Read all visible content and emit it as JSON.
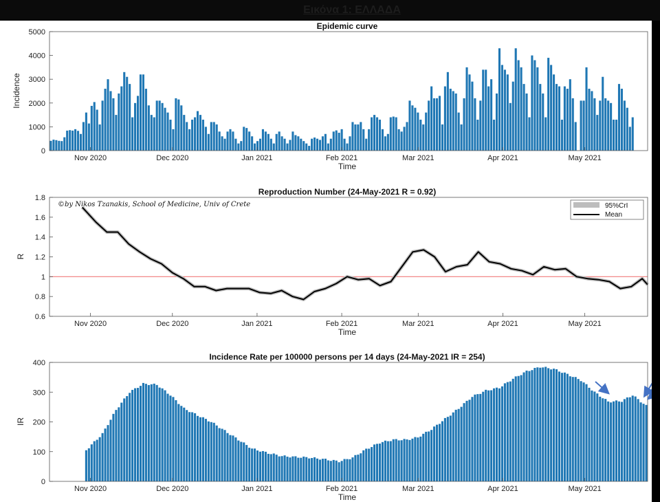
{
  "header": {
    "title": "Εικόνα 1: ΕΛΛΑΔΑ"
  },
  "colors": {
    "bar": "#1f77b4",
    "threshold": "#f07a7a",
    "mean": "#000000",
    "ci": "#bdbdbd",
    "arrow": "#4472c4"
  },
  "chart_data": [
    {
      "type": "bar",
      "title": "Epidemic curve",
      "xlabel": "Time",
      "ylabel": "Incidence",
      "ylim": [
        0,
        5000
      ],
      "yticks": [
        "0",
        "1000",
        "2000",
        "3000",
        "4000",
        "5000"
      ],
      "xticks": [
        "Nov 2020",
        "Dec 2020",
        "Jan 2021",
        "Feb 2021",
        "Mar 2021",
        "Apr 2021",
        "May 2021"
      ],
      "x_range": [
        "2020-10-17",
        "2021-05-24"
      ],
      "values": [
        410,
        460,
        440,
        410,
        400,
        560,
        840,
        860,
        840,
        900,
        830,
        700,
        1200,
        1600,
        1140,
        1880,
        2040,
        1720,
        1100,
        2100,
        2600,
        3000,
        2500,
        2200,
        1500,
        2400,
        2700,
        3300,
        3100,
        2800,
        1400,
        2000,
        2300,
        3200,
        3200,
        2600,
        1900,
        1500,
        1400,
        2100,
        2100,
        2000,
        1800,
        1600,
        1300,
        900,
        2200,
        2150,
        1900,
        1500,
        1200,
        900,
        1300,
        1400,
        1660,
        1500,
        1300,
        1000,
        700,
        1200,
        1200,
        1100,
        800,
        600,
        500,
        800,
        900,
        800,
        500,
        300,
        400,
        1000,
        950,
        800,
        600,
        300,
        400,
        500,
        900,
        800,
        700,
        500,
        300,
        700,
        800,
        600,
        500,
        300,
        450,
        800,
        650,
        600,
        500,
        400,
        300,
        200,
        500,
        550,
        500,
        450,
        600,
        700,
        300,
        500,
        800,
        850,
        750,
        900,
        500,
        300,
        600,
        1200,
        1100,
        1100,
        1200,
        900,
        500,
        900,
        1400,
        1500,
        1400,
        1300,
        900,
        600,
        700,
        1400,
        1430,
        1400,
        900,
        800,
        1000,
        1200,
        2100,
        1900,
        1800,
        1600,
        1300,
        1100,
        1600,
        2100,
        2700,
        2200,
        2200,
        2300,
        1100,
        2700,
        3300,
        2600,
        2500,
        2400,
        1600,
        1100,
        2200,
        3500,
        3200,
        2900,
        2200,
        1300,
        2100,
        3400,
        3400,
        2700,
        3000,
        1300,
        2400,
        4300,
        3600,
        3400,
        3200,
        2000,
        2900,
        4300,
        3800,
        3500,
        2800,
        2400,
        1400,
        4000,
        3800,
        3500,
        2800,
        2400,
        1400,
        3900,
        3600,
        3200,
        2800,
        2700,
        1300,
        2700,
        2600,
        3000,
        2200,
        1200,
        0,
        2100,
        2100,
        3500,
        2600,
        2500,
        2200,
        1500,
        2100,
        3100,
        2200,
        2100,
        2000,
        1300,
        1300,
        2800,
        2600,
        2100,
        1800,
        1000,
        1400
      ]
    },
    {
      "type": "line",
      "title": "Reproduction Number (24-May-2021 R = 0.92)",
      "xlabel": "Time",
      "ylabel": "R",
      "ylim": [
        0.6,
        1.8
      ],
      "yticks": [
        "0.6",
        "0.8",
        "1",
        "1.2",
        "1.4",
        "1.6",
        "1.8"
      ],
      "xticks": [
        "Nov 2020",
        "Dec 2020",
        "Jan 2021",
        "Feb 2021",
        "Mar 2021",
        "Apr 2021",
        "May 2021"
      ],
      "x_range": [
        "2020-10-17",
        "2021-05-24"
      ],
      "threshold": 1,
      "annotation": "©by Nikos Tzanakis, School of Medicine, Univ of Crete",
      "legend": {
        "placement": "top-right",
        "items": [
          {
            "label": "95%CrI"
          },
          {
            "label": "Mean"
          }
        ]
      },
      "series_points": [
        [
          "2020-10-29",
          1.7
        ],
        [
          "2020-11-03",
          1.55
        ],
        [
          "2020-11-07",
          1.45
        ],
        [
          "2020-11-11",
          1.45
        ],
        [
          "2020-11-15",
          1.33
        ],
        [
          "2020-11-19",
          1.25
        ],
        [
          "2020-11-23",
          1.18
        ],
        [
          "2020-11-27",
          1.13
        ],
        [
          "2020-12-01",
          1.04
        ],
        [
          "2020-12-05",
          0.98
        ],
        [
          "2020-12-09",
          0.9
        ],
        [
          "2020-12-13",
          0.9
        ],
        [
          "2020-12-17",
          0.86
        ],
        [
          "2020-12-21",
          0.88
        ],
        [
          "2020-12-25",
          0.88
        ],
        [
          "2020-12-29",
          0.88
        ],
        [
          "2021-01-02",
          0.84
        ],
        [
          "2021-01-06",
          0.83
        ],
        [
          "2021-01-10",
          0.86
        ],
        [
          "2021-01-14",
          0.8
        ],
        [
          "2021-01-18",
          0.77
        ],
        [
          "2021-01-22",
          0.85
        ],
        [
          "2021-01-26",
          0.88
        ],
        [
          "2021-01-30",
          0.93
        ],
        [
          "2021-02-03",
          1.0
        ],
        [
          "2021-02-07",
          0.97
        ],
        [
          "2021-02-11",
          0.98
        ],
        [
          "2021-02-15",
          0.91
        ],
        [
          "2021-02-19",
          0.95
        ],
        [
          "2021-02-23",
          1.1
        ],
        [
          "2021-02-27",
          1.25
        ],
        [
          "2021-03-03",
          1.27
        ],
        [
          "2021-03-07",
          1.2
        ],
        [
          "2021-03-11",
          1.05
        ],
        [
          "2021-03-15",
          1.1
        ],
        [
          "2021-03-19",
          1.12
        ],
        [
          "2021-03-23",
          1.25
        ],
        [
          "2021-03-27",
          1.15
        ],
        [
          "2021-03-31",
          1.13
        ],
        [
          "2021-04-04",
          1.08
        ],
        [
          "2021-04-08",
          1.06
        ],
        [
          "2021-04-12",
          1.02
        ],
        [
          "2021-04-16",
          1.1
        ],
        [
          "2021-04-20",
          1.07
        ],
        [
          "2021-04-24",
          1.08
        ],
        [
          "2021-04-28",
          1.0
        ],
        [
          "2021-05-02",
          0.98
        ],
        [
          "2021-05-06",
          0.97
        ],
        [
          "2021-05-10",
          0.95
        ],
        [
          "2021-05-14",
          0.88
        ],
        [
          "2021-05-18",
          0.9
        ],
        [
          "2021-05-22",
          0.98
        ],
        [
          "2021-05-24",
          0.92
        ]
      ]
    },
    {
      "type": "bar",
      "title": "Incidence Rate per 100000 persons per 14 days (24-May-2021 IR = 254)",
      "xlabel": "Time",
      "ylabel": "IR",
      "ylim": [
        0,
        400
      ],
      "yticks": [
        "0",
        "100",
        "200",
        "300",
        "400"
      ],
      "xticks": [
        "Nov 2020",
        "Dec 2020",
        "Jan 2021",
        "Feb 2021",
        "Mar 2021",
        "Apr 2021",
        "May 2021"
      ],
      "x_range": [
        "2020-10-17",
        "2021-05-24"
      ],
      "first_bar_date": "2020-10-30",
      "keypoints": [
        [
          "2020-10-30",
          105
        ],
        [
          "2020-11-05",
          160
        ],
        [
          "2020-11-10",
          240
        ],
        [
          "2020-11-15",
          300
        ],
        [
          "2020-11-20",
          328
        ],
        [
          "2020-11-25",
          325
        ],
        [
          "2020-11-30",
          290
        ],
        [
          "2020-12-05",
          245
        ],
        [
          "2020-12-10",
          222
        ],
        [
          "2020-12-15",
          200
        ],
        [
          "2020-12-20",
          170
        ],
        [
          "2020-12-25",
          140
        ],
        [
          "2020-12-30",
          110
        ],
        [
          "2021-01-05",
          95
        ],
        [
          "2021-01-10",
          85
        ],
        [
          "2021-01-15",
          82
        ],
        [
          "2021-01-20",
          80
        ],
        [
          "2021-01-25",
          75
        ],
        [
          "2021-01-31",
          67
        ],
        [
          "2021-02-05",
          80
        ],
        [
          "2021-02-10",
          108
        ],
        [
          "2021-02-15",
          130
        ],
        [
          "2021-02-20",
          140
        ],
        [
          "2021-02-25",
          140
        ],
        [
          "2021-03-01",
          148
        ],
        [
          "2021-03-06",
          175
        ],
        [
          "2021-03-11",
          210
        ],
        [
          "2021-03-16",
          245
        ],
        [
          "2021-03-21",
          285
        ],
        [
          "2021-03-26",
          305
        ],
        [
          "2021-03-31",
          315
        ],
        [
          "2021-04-05",
          345
        ],
        [
          "2021-04-10",
          370
        ],
        [
          "2021-04-15",
          385
        ],
        [
          "2021-04-20",
          378
        ],
        [
          "2021-04-25",
          360
        ],
        [
          "2021-04-30",
          340
        ],
        [
          "2021-05-05",
          300
        ],
        [
          "2021-05-10",
          268
        ],
        [
          "2021-05-15",
          270
        ],
        [
          "2021-05-19",
          290
        ],
        [
          "2021-05-24",
          254
        ]
      ],
      "arrows": 3
    }
  ]
}
